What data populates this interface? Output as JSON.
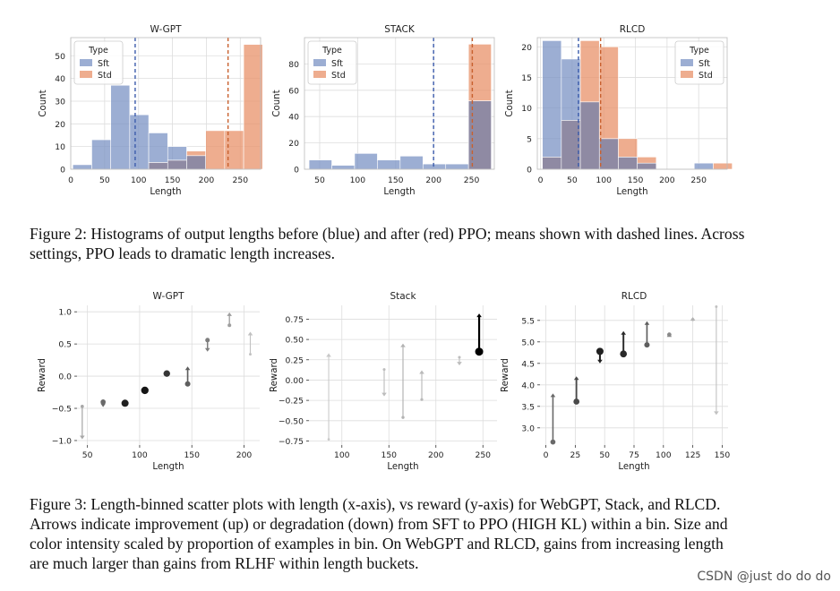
{
  "colors": {
    "sft": "#7b93c4",
    "std": "#e8916a",
    "overlap": "#8f8aa3",
    "grid": "#dddddd",
    "axis": "#333333"
  },
  "figure2": {
    "caption": "Figure 2: Histograms of output lengths before (blue) and after (red) PPO; means shown with dashed lines. Across settings, PPO leads to dramatic length increases.",
    "chart_data": [
      {
        "type": "bar",
        "title": "W-GPT",
        "xlabel": "Length",
        "ylabel": "Count",
        "xlim": [
          0,
          280
        ],
        "ylim": [
          0,
          58
        ],
        "xticks": [
          0,
          50,
          100,
          150,
          200,
          250
        ],
        "yticks": [
          0,
          10,
          20,
          30,
          40,
          50
        ],
        "legend": {
          "title": "Type",
          "entries": [
            "Sft",
            "Std"
          ],
          "position": "top-left"
        },
        "bin_edges": [
          3,
          31,
          59,
          87,
          115,
          143,
          171,
          199,
          227,
          255,
          283
        ],
        "series": [
          {
            "name": "Sft",
            "values": [
              2,
              13,
              37,
              24,
              16,
              10,
              6,
              0,
              0,
              0
            ]
          },
          {
            "name": "Std",
            "values": [
              0,
              0,
              0,
              0,
              3,
              4,
              8,
              17,
              17,
              55
            ]
          }
        ],
        "means": {
          "Sft": 95,
          "Std": 232
        }
      },
      {
        "type": "bar",
        "title": "STACK",
        "xlabel": "Length",
        "ylabel": "Count",
        "xlim": [
          30,
          280
        ],
        "ylim": [
          0,
          100
        ],
        "xticks": [
          50,
          100,
          150,
          200,
          250
        ],
        "yticks": [
          0,
          20,
          40,
          60,
          80
        ],
        "legend": {
          "title": "Type",
          "entries": [
            "Sft",
            "Std"
          ],
          "position": "top-left"
        },
        "bin_edges": [
          36,
          66,
          96,
          126,
          156,
          186,
          216,
          246,
          276
        ],
        "series": [
          {
            "name": "Sft",
            "values": [
              7,
              3,
              12,
              7,
              10,
              4,
              4,
              52
            ]
          },
          {
            "name": "Std",
            "values": [
              0,
              0,
              0,
              0,
              0,
              0,
              0,
              95
            ]
          }
        ],
        "means": {
          "Sft": 200,
          "Std": 251
        }
      },
      {
        "type": "bar",
        "title": "RLCD",
        "xlabel": "Length",
        "ylabel": "Count",
        "xlim": [
          -5,
          295
        ],
        "ylim": [
          0,
          21.5
        ],
        "xticks": [
          0,
          50,
          100,
          150,
          200,
          250
        ],
        "yticks": [
          0,
          5,
          10,
          15,
          20
        ],
        "legend": {
          "title": "Type",
          "entries": [
            "Sft",
            "Std"
          ],
          "position": "top-right"
        },
        "bin_edges": [
          3,
          33,
          63,
          93,
          123,
          153,
          183,
          213,
          243,
          273,
          303
        ],
        "series": [
          {
            "name": "Sft",
            "values": [
              21,
              18,
              11,
              5,
              2,
              1,
              0,
              0,
              1,
              0
            ]
          },
          {
            "name": "Std",
            "values": [
              2,
              8,
              21,
              20,
              5,
              2,
              0,
              0,
              0,
              1
            ]
          }
        ],
        "means": {
          "Sft": 60,
          "Std": 95
        }
      }
    ]
  },
  "figure3": {
    "caption": "Figure 3: Length-binned scatter plots with length (x-axis), vs reward (y-axis) for WebGPT, Stack, and RLCD. Arrows indicate improvement (up) or degradation (down) from SFT to PPO (HIGH KL) within a bin. Size and color intensity scaled by proportion of examples in bin. On WebGPT and RLCD, gains from increasing length are much larger than gains from RLHF within length buckets.",
    "chart_data": [
      {
        "type": "scatter",
        "title": "W-GPT",
        "xlabel": "Length",
        "ylabel": "Reward",
        "xlim": [
          40,
          215
        ],
        "ylim": [
          -1.07,
          1.1
        ],
        "xticks": [
          50,
          100,
          150,
          200
        ],
        "yticks": [
          -1.0,
          -0.5,
          0.0,
          0.5,
          1.0
        ],
        "points": [
          {
            "x": 45,
            "y_from": -0.47,
            "y_to": -0.98,
            "weight": 0.2
          },
          {
            "x": 65,
            "y_from": -0.4,
            "y_to": -0.48,
            "weight": 0.5
          },
          {
            "x": 86,
            "y_from": -0.42,
            "y_to": -0.39,
            "weight": 0.85
          },
          {
            "x": 105,
            "y_from": -0.22,
            "y_to": -0.17,
            "weight": 0.9
          },
          {
            "x": 126,
            "y_from": 0.04,
            "y_to": 0.07,
            "weight": 0.75
          },
          {
            "x": 146,
            "y_from": -0.12,
            "y_to": 0.15,
            "weight": 0.55
          },
          {
            "x": 165,
            "y_from": 0.56,
            "y_to": 0.38,
            "weight": 0.4
          },
          {
            "x": 186,
            "y_from": 0.79,
            "y_to": 0.99,
            "weight": 0.25
          },
          {
            "x": 206,
            "y_from": 0.34,
            "y_to": 0.69,
            "weight": 0.08
          }
        ]
      },
      {
        "type": "scatter",
        "title": "Stack",
        "xlabel": "Length",
        "ylabel": "Reward",
        "xlim": [
          65,
          265
        ],
        "ylim": [
          -0.8,
          0.92
        ],
        "xticks": [
          100,
          150,
          200,
          250
        ],
        "yticks": [
          -0.75,
          -0.5,
          -0.25,
          0.0,
          0.25,
          0.5,
          0.75
        ],
        "points": [
          {
            "x": 86,
            "y_from": -0.73,
            "y_to": 0.33,
            "weight": 0.05
          },
          {
            "x": 145,
            "y_from": 0.13,
            "y_to": -0.2,
            "weight": 0.1
          },
          {
            "x": 165,
            "y_from": -0.46,
            "y_to": 0.45,
            "weight": 0.15
          },
          {
            "x": 185,
            "y_from": -0.24,
            "y_to": 0.12,
            "weight": 0.12
          },
          {
            "x": 225,
            "y_from": 0.28,
            "y_to": 0.18,
            "weight": 0.1
          },
          {
            "x": 246,
            "y_from": 0.35,
            "y_to": 0.82,
            "weight": 1.0
          }
        ]
      },
      {
        "type": "scatter",
        "title": "RLCD",
        "xlabel": "Length",
        "ylabel": "Reward",
        "xlim": [
          -5,
          155
        ],
        "ylim": [
          2.6,
          5.85
        ],
        "xticks": [
          0,
          25,
          50,
          75,
          100,
          125,
          150
        ],
        "yticks": [
          3.0,
          3.5,
          4.0,
          4.5,
          5.0,
          5.5
        ],
        "points": [
          {
            "x": 6,
            "y_from": 2.67,
            "y_to": 3.8,
            "weight": 0.5
          },
          {
            "x": 26,
            "y_from": 3.61,
            "y_to": 4.2,
            "weight": 0.65
          },
          {
            "x": 46,
            "y_from": 4.78,
            "y_to": 4.5,
            "weight": 0.85
          },
          {
            "x": 66,
            "y_from": 4.72,
            "y_to": 5.25,
            "weight": 0.8
          },
          {
            "x": 86,
            "y_from": 4.93,
            "y_to": 5.48,
            "weight": 0.55
          },
          {
            "x": 105,
            "y_from": 5.17,
            "y_to": 5.2,
            "weight": 0.35
          },
          {
            "x": 125,
            "y_from": 5.52,
            "y_to": 5.58,
            "weight": 0.15
          },
          {
            "x": 145,
            "y_from": 5.82,
            "y_to": 3.3,
            "weight": 0.08
          }
        ]
      }
    ]
  },
  "watermark": "CSDN @just do do do"
}
